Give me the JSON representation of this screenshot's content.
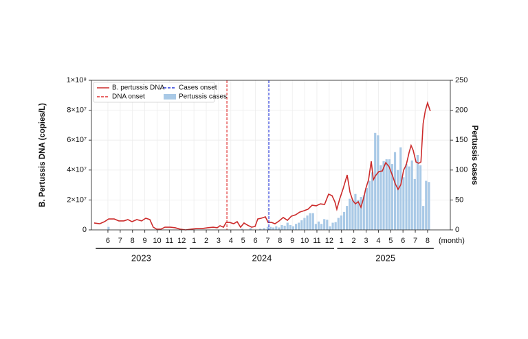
{
  "chart_data": {
    "type": "combo",
    "ylabel": "B. Pertussis DNA (copies/L)",
    "y2label": "Pertussis cases",
    "xlabel": "(month)",
    "year_labels": [
      "2023",
      "2024",
      "2025"
    ],
    "xlim": [
      4.66,
      33.85
    ],
    "xticks": [
      6,
      7,
      8,
      9,
      10,
      11,
      12,
      {
        "value": 13,
        "label": "1"
      },
      {
        "value": 14,
        "label": "2"
      },
      {
        "value": 15,
        "label": "3"
      },
      {
        "value": 16,
        "label": "4"
      },
      {
        "value": 17,
        "label": "5"
      },
      {
        "value": 18,
        "label": "6"
      },
      {
        "value": 19,
        "label": "7"
      },
      {
        "value": 20,
        "label": "8"
      },
      {
        "value": 21,
        "label": "9"
      },
      {
        "value": 22,
        "label": "10"
      },
      {
        "value": 23,
        "label": "11"
      },
      {
        "value": 24,
        "label": "12"
      },
      {
        "value": 25,
        "label": "1"
      },
      {
        "value": 26,
        "label": "2"
      },
      {
        "value": 27,
        "label": "3"
      },
      {
        "value": 28,
        "label": "4"
      },
      {
        "value": 29,
        "label": "5"
      },
      {
        "value": 30,
        "label": "6"
      },
      {
        "value": 31,
        "label": "7"
      },
      {
        "value": 32,
        "label": "8"
      }
    ],
    "ylim": [
      0,
      100000000
    ],
    "yticks": [
      0,
      {
        "value": 20000000,
        "label": "2×10⁷"
      },
      {
        "value": 40000000,
        "label": "4×10⁷"
      },
      {
        "value": 60000000,
        "label": "6×10⁷"
      },
      {
        "value": 80000000,
        "label": "8×10⁷"
      },
      {
        "value": 100000000,
        "label": "1×10⁸"
      }
    ],
    "y2lim": [
      0,
      250
    ],
    "y2ticks": [
      0,
      50,
      100,
      150,
      200,
      250
    ],
    "grid": true,
    "legend": "upper left",
    "series": [
      {
        "name": "B. pertussis DNA",
        "type": "line",
        "color": "#cc2b2b",
        "x": [
          4.88,
          5.33,
          5.72,
          6.06,
          6.51,
          6.89,
          7.29,
          7.62,
          7.96,
          8.35,
          8.74,
          9.08,
          9.41,
          9.69,
          9.97,
          10.31,
          10.64,
          11.09,
          11.48,
          11.87,
          12.32,
          12.77,
          13.21,
          13.66,
          14.1,
          14.56,
          14.89,
          15.12,
          15.4,
          15.62,
          15.9,
          16.23,
          16.51,
          16.79,
          17.07,
          17.35,
          17.69,
          17.97,
          18.19,
          18.47,
          18.81,
          19.03,
          19.31,
          19.59,
          19.93,
          20.26,
          20.6,
          20.93,
          21.27,
          21.6,
          21.94,
          22.27,
          22.61,
          22.95,
          23.28,
          23.62,
          23.95,
          24.23,
          24.46,
          24.62,
          24.85,
          25.13,
          25.46,
          25.69,
          25.91,
          26.13,
          26.36,
          26.58,
          26.81,
          26.97,
          27.2,
          27.42,
          27.59,
          27.76,
          28.04,
          28.32,
          28.6,
          28.87,
          29.15,
          29.38,
          29.6,
          29.83,
          30.05,
          30.27,
          30.5,
          30.66,
          30.83,
          31.06,
          31.28,
          31.46,
          31.64,
          31.81,
          32.0,
          32.22
        ],
        "values": [
          4600000,
          4100000,
          5500000,
          7300000,
          7300000,
          6000000,
          6000000,
          6900000,
          5500000,
          6900000,
          6000000,
          7800000,
          6900000,
          1800000,
          500000,
          500000,
          1800000,
          1800000,
          1400000,
          500000,
          0,
          500000,
          900000,
          900000,
          1400000,
          1800000,
          1400000,
          2800000,
          1800000,
          5000000,
          5000000,
          4100000,
          5500000,
          1800000,
          4600000,
          3200000,
          1800000,
          2300000,
          7300000,
          7800000,
          8700000,
          5000000,
          5000000,
          4100000,
          6000000,
          8300000,
          6400000,
          9200000,
          10100000,
          11900000,
          12800000,
          13800000,
          16500000,
          16100000,
          17400000,
          17000000,
          23900000,
          22900000,
          18800000,
          13800000,
          20600000,
          27500000,
          36700000,
          25200000,
          19700000,
          17400000,
          18800000,
          15100000,
          21600000,
          27500000,
          33500000,
          45900000,
          33500000,
          36200000,
          39000000,
          39400000,
          45000000,
          42200000,
          36200000,
          30700000,
          27100000,
          30300000,
          39900000,
          43600000,
          51800000,
          56400000,
          53200000,
          45400000,
          44500000,
          45400000,
          71100000,
          79400000,
          84900000,
          79400000
        ]
      },
      {
        "name": "Pertussis cases",
        "type": "bar",
        "axis": "y2",
        "color": "#a9c9e6",
        "x": [
          6.05,
          16.9,
          17.6,
          18.4,
          18.7,
          19.0,
          19.23,
          19.46,
          19.69,
          19.92,
          20.15,
          20.38,
          20.61,
          20.84,
          21.07,
          21.3,
          21.53,
          21.76,
          21.99,
          22.22,
          22.45,
          22.68,
          22.91,
          23.14,
          23.37,
          23.6,
          23.83,
          24.06,
          24.29,
          24.52,
          24.75,
          24.98,
          25.21,
          25.44,
          25.67,
          25.9,
          26.13,
          26.36,
          26.59,
          26.82,
          27.05,
          27.28,
          27.51,
          27.74,
          27.97,
          28.2,
          28.43,
          28.66,
          28.89,
          29.12,
          29.35,
          29.58,
          29.81,
          30.04,
          30.27,
          30.5,
          30.73,
          30.96,
          31.19,
          31.42,
          31.65,
          31.88,
          32.11
        ],
        "values": [
          5,
          2,
          3,
          2,
          3,
          5,
          5,
          4,
          6,
          4,
          8,
          7,
          12,
          8,
          6,
          10,
          12,
          16,
          20,
          24,
          28,
          28,
          10,
          14,
          10,
          18,
          17,
          6,
          12,
          13,
          20,
          24,
          30,
          40,
          52,
          50,
          60,
          50,
          55,
          58,
          70,
          82,
          96,
          162,
          158,
          108,
          115,
          118,
          118,
          110,
          130,
          100,
          138,
          88,
          110,
          106,
          116,
          85,
          125,
          108,
          40,
          82,
          80
        ]
      }
    ],
    "vlines": [
      {
        "label": "DNA onset",
        "x": 15.68,
        "color": "#e03232"
      },
      {
        "label": "Cases onset",
        "x": 19.09,
        "color": "#2234d8"
      }
    ]
  }
}
